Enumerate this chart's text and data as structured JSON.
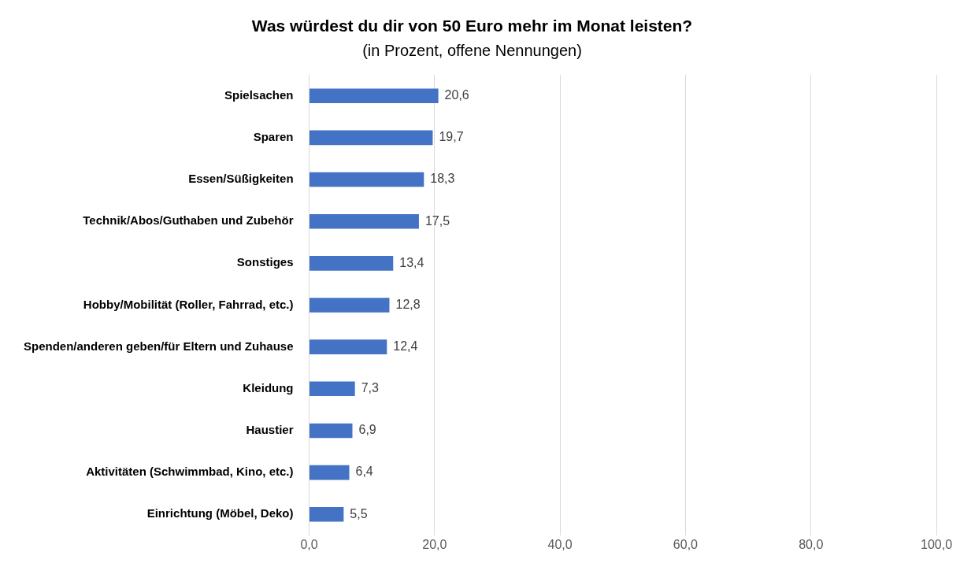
{
  "chart_data": {
    "type": "bar",
    "orientation": "horizontal",
    "title": "Was würdest du dir von 50 Euro mehr im Monat leisten?",
    "subtitle": "(in Prozent, offene Nennungen)",
    "categories": [
      "Spielsachen",
      "Sparen",
      "Essen/Süßigkeiten",
      "Technik/Abos/Guthaben und Zubehör",
      "Sonstiges",
      "Hobby/Mobilität (Roller, Fahrrad, etc.)",
      "Spenden/anderen geben/für Eltern und Zuhause",
      "Kleidung",
      "Haustier",
      "Aktivitäten (Schwimmbad, Kino, etc.)",
      "Einrichtung (Möbel, Deko)"
    ],
    "values": [
      20.6,
      19.7,
      18.3,
      17.5,
      13.4,
      12.8,
      12.4,
      7.3,
      6.9,
      6.4,
      5.5
    ],
    "value_labels": [
      "20,6",
      "19,7",
      "18,3",
      "17,5",
      "13,4",
      "12,8",
      "12,4",
      "7,3",
      "6,9",
      "6,4",
      "5,5"
    ],
    "color": "#4472c4",
    "xlim": [
      0,
      100
    ],
    "xticks": [
      {
        "value": 0,
        "label": "0,0"
      },
      {
        "value": 20,
        "label": "20,0"
      },
      {
        "value": 40,
        "label": "40,0"
      },
      {
        "value": 60,
        "label": "60,0"
      },
      {
        "value": 80,
        "label": "80,0"
      },
      {
        "value": 100,
        "label": "100,0"
      }
    ],
    "grid": "x",
    "legend": false
  }
}
